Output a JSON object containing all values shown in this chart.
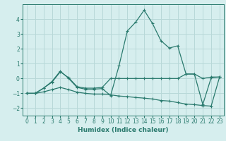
{
  "xlabel": "Humidex (Indice chaleur)",
  "background_color": "#d6eeee",
  "line_color": "#2a7a6e",
  "grid_color": "#b8d8d8",
  "xlim": [
    -0.5,
    23.5
  ],
  "ylim": [
    -2.5,
    5.0
  ],
  "xticks": [
    0,
    1,
    2,
    3,
    4,
    5,
    6,
    7,
    8,
    9,
    10,
    11,
    12,
    13,
    14,
    15,
    16,
    17,
    18,
    19,
    20,
    21,
    22,
    23
  ],
  "yticks": [
    -2,
    -1,
    0,
    1,
    2,
    3,
    4
  ],
  "series1_x": [
    0,
    1,
    2,
    3,
    4,
    5,
    6,
    7,
    8,
    9,
    10,
    11,
    12,
    13,
    14,
    15,
    16,
    17,
    18,
    19,
    20,
    21,
    22,
    23
  ],
  "series1_y": [
    -1.0,
    -1.0,
    -0.65,
    -0.25,
    0.45,
    0.05,
    -0.55,
    -0.65,
    -0.65,
    -0.6,
    0.0,
    0.0,
    0.0,
    0.0,
    0.0,
    0.0,
    0.0,
    0.0,
    0.0,
    0.3,
    0.3,
    0.0,
    0.1,
    0.1
  ],
  "series2_x": [
    0,
    1,
    2,
    3,
    4,
    5,
    6,
    7,
    8,
    9,
    10,
    11,
    12,
    13,
    14,
    15,
    16,
    17,
    18,
    19,
    20,
    21,
    22,
    23
  ],
  "series2_y": [
    -1.0,
    -1.0,
    -0.65,
    -0.2,
    0.5,
    0.0,
    -0.6,
    -0.72,
    -0.72,
    -0.68,
    -1.15,
    0.85,
    3.2,
    3.8,
    4.6,
    3.7,
    2.55,
    2.05,
    2.2,
    0.3,
    0.3,
    -1.75,
    0.05,
    0.1
  ],
  "series3_x": [
    0,
    1,
    2,
    3,
    4,
    5,
    6,
    7,
    8,
    9,
    10,
    11,
    12,
    13,
    14,
    15,
    16,
    17,
    18,
    19,
    20,
    21,
    22,
    23
  ],
  "series3_y": [
    -1.0,
    -1.0,
    -0.9,
    -0.75,
    -0.6,
    -0.75,
    -0.92,
    -1.0,
    -1.05,
    -1.05,
    -1.1,
    -1.18,
    -1.22,
    -1.28,
    -1.32,
    -1.38,
    -1.48,
    -1.52,
    -1.62,
    -1.72,
    -1.76,
    -1.82,
    -1.86,
    0.1
  ]
}
